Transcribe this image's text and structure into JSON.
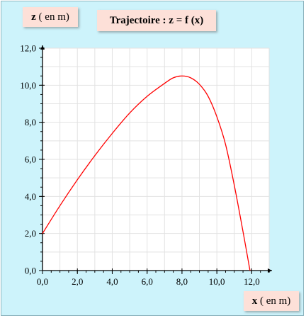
{
  "chart_data": {
    "type": "line",
    "title": "Trajectoire : z = f (x)",
    "xlabel_var": "x",
    "xlabel_unit": " ( en m)",
    "ylabel_var": "z",
    "ylabel_unit": " ( en m)",
    "xlim": [
      0,
      13
    ],
    "ylim": [
      0,
      12
    ],
    "x_ticks": [
      "0,0",
      "2,0",
      "4,0",
      "6,0",
      "8,0",
      "10,0",
      "12,0"
    ],
    "y_ticks": [
      "0,0",
      "2,0",
      "4,0",
      "6,0",
      "8,0",
      "10,0",
      "12,0"
    ],
    "grid": true,
    "line_color": "#ff0000",
    "series": [
      {
        "x": [
          0,
          1,
          2,
          3,
          4,
          5,
          6,
          7,
          7.5,
          8,
          8.5,
          9,
          9.5,
          10,
          10.5,
          11,
          11.5,
          11.9
        ],
        "y": [
          2.0,
          3.5,
          4.9,
          6.2,
          7.4,
          8.5,
          9.4,
          10.1,
          10.4,
          10.5,
          10.4,
          10.05,
          9.4,
          8.3,
          6.8,
          4.6,
          2.1,
          0.0
        ]
      }
    ]
  },
  "colors": {
    "background": "#cdf3fb",
    "plot_area": "#ffffff",
    "label_box": "#fde0d8"
  }
}
